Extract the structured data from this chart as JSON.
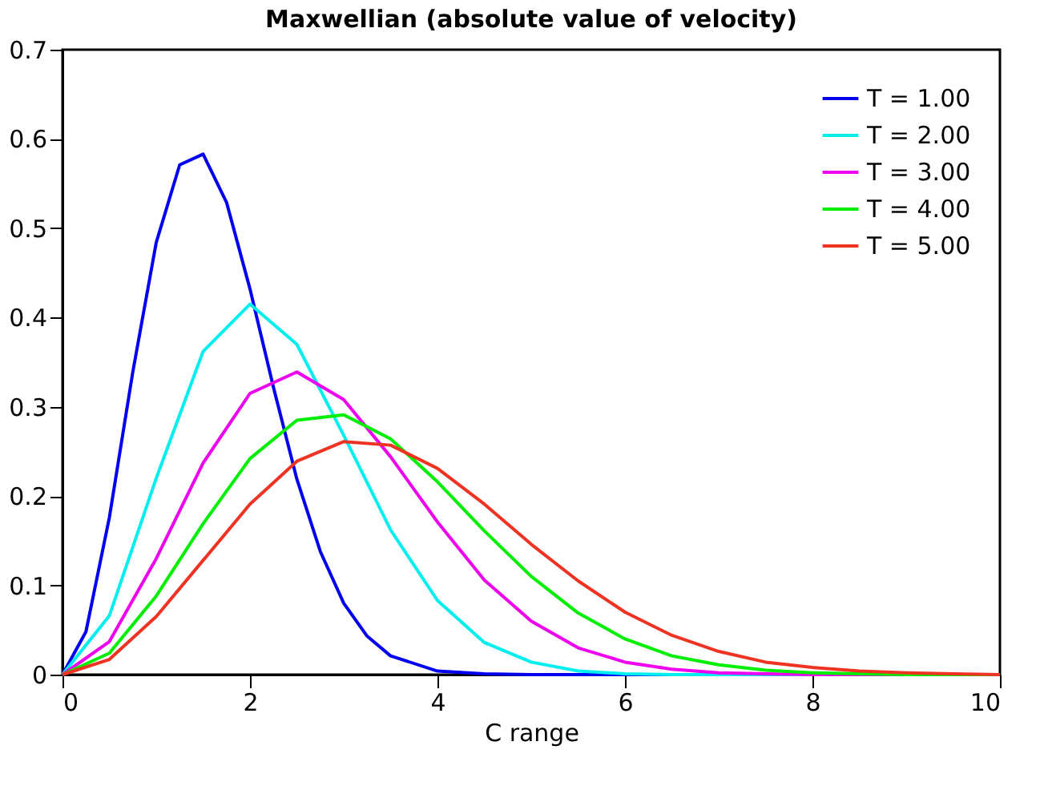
{
  "chart_data": {
    "type": "line",
    "title": "Maxwellian (absolute value of velocity)",
    "xlabel": "C range",
    "xlim": [
      0,
      10
    ],
    "xticks": [
      0,
      2,
      4,
      6,
      8,
      10
    ],
    "ylim": [
      0,
      0.7
    ],
    "yticks": [
      0,
      0.1,
      0.2,
      0.3,
      0.4,
      0.5,
      0.6,
      0.7
    ],
    "grid": false,
    "legend": "top right",
    "marker": "none",
    "line_style": "solid",
    "x": [
      0,
      0.5,
      1,
      1.5,
      2,
      2.5,
      3,
      3.5,
      4,
      4.5,
      5,
      5.5,
      6,
      6.5,
      7,
      7.5,
      8,
      8.5,
      9,
      9.5,
      10
    ],
    "series": [
      {
        "name": "T = 1.00",
        "color": "#0000ee",
        "x": [
          0,
          0.25,
          0.5,
          0.75,
          1,
          1.25,
          1.5,
          1.75,
          2,
          2.25,
          2.5,
          2.75,
          3,
          3.25,
          3.5,
          4,
          4.5,
          5,
          6,
          7,
          8,
          9,
          10
        ],
        "values": [
          0,
          0.048,
          0.176,
          0.339,
          0.484,
          0.571,
          0.583,
          0.529,
          0.432,
          0.322,
          0.219,
          0.138,
          0.08,
          0.043,
          0.021,
          0.004,
          0.001,
          0,
          0,
          0,
          0,
          0,
          0
        ]
      },
      {
        "name": "T = 2.00",
        "color": "#00eeee",
        "values": [
          0,
          0.066,
          0.22,
          0.362,
          0.415,
          0.37,
          0.268,
          0.162,
          0.083,
          0.036,
          0.014,
          0.004,
          0.001,
          0,
          0,
          0,
          0,
          null,
          null,
          null,
          null
        ]
      },
      {
        "name": "T = 3.00",
        "color": "#ee00ee",
        "values": [
          0,
          0.037,
          0.13,
          0.237,
          0.315,
          0.339,
          0.308,
          0.244,
          0.171,
          0.106,
          0.06,
          0.03,
          0.014,
          0.006,
          0.002,
          0.001,
          0,
          0,
          0,
          null,
          null
        ]
      },
      {
        "name": "T = 4.00",
        "color": "#00ee00",
        "values": [
          0,
          0.024,
          0.088,
          0.169,
          0.242,
          0.285,
          0.291,
          0.264,
          0.216,
          0.161,
          0.11,
          0.069,
          0.04,
          0.021,
          0.011,
          0.005,
          0.002,
          0.001,
          0,
          0,
          0
        ]
      },
      {
        "name": "T = 5.00",
        "color": "#ee3322",
        "values": [
          0,
          0.017,
          0.065,
          0.128,
          0.191,
          0.239,
          0.261,
          0.257,
          0.231,
          0.191,
          0.146,
          0.105,
          0.07,
          0.044,
          0.026,
          0.014,
          0.008,
          0.004,
          0.002,
          0.001,
          0
        ]
      }
    ]
  }
}
